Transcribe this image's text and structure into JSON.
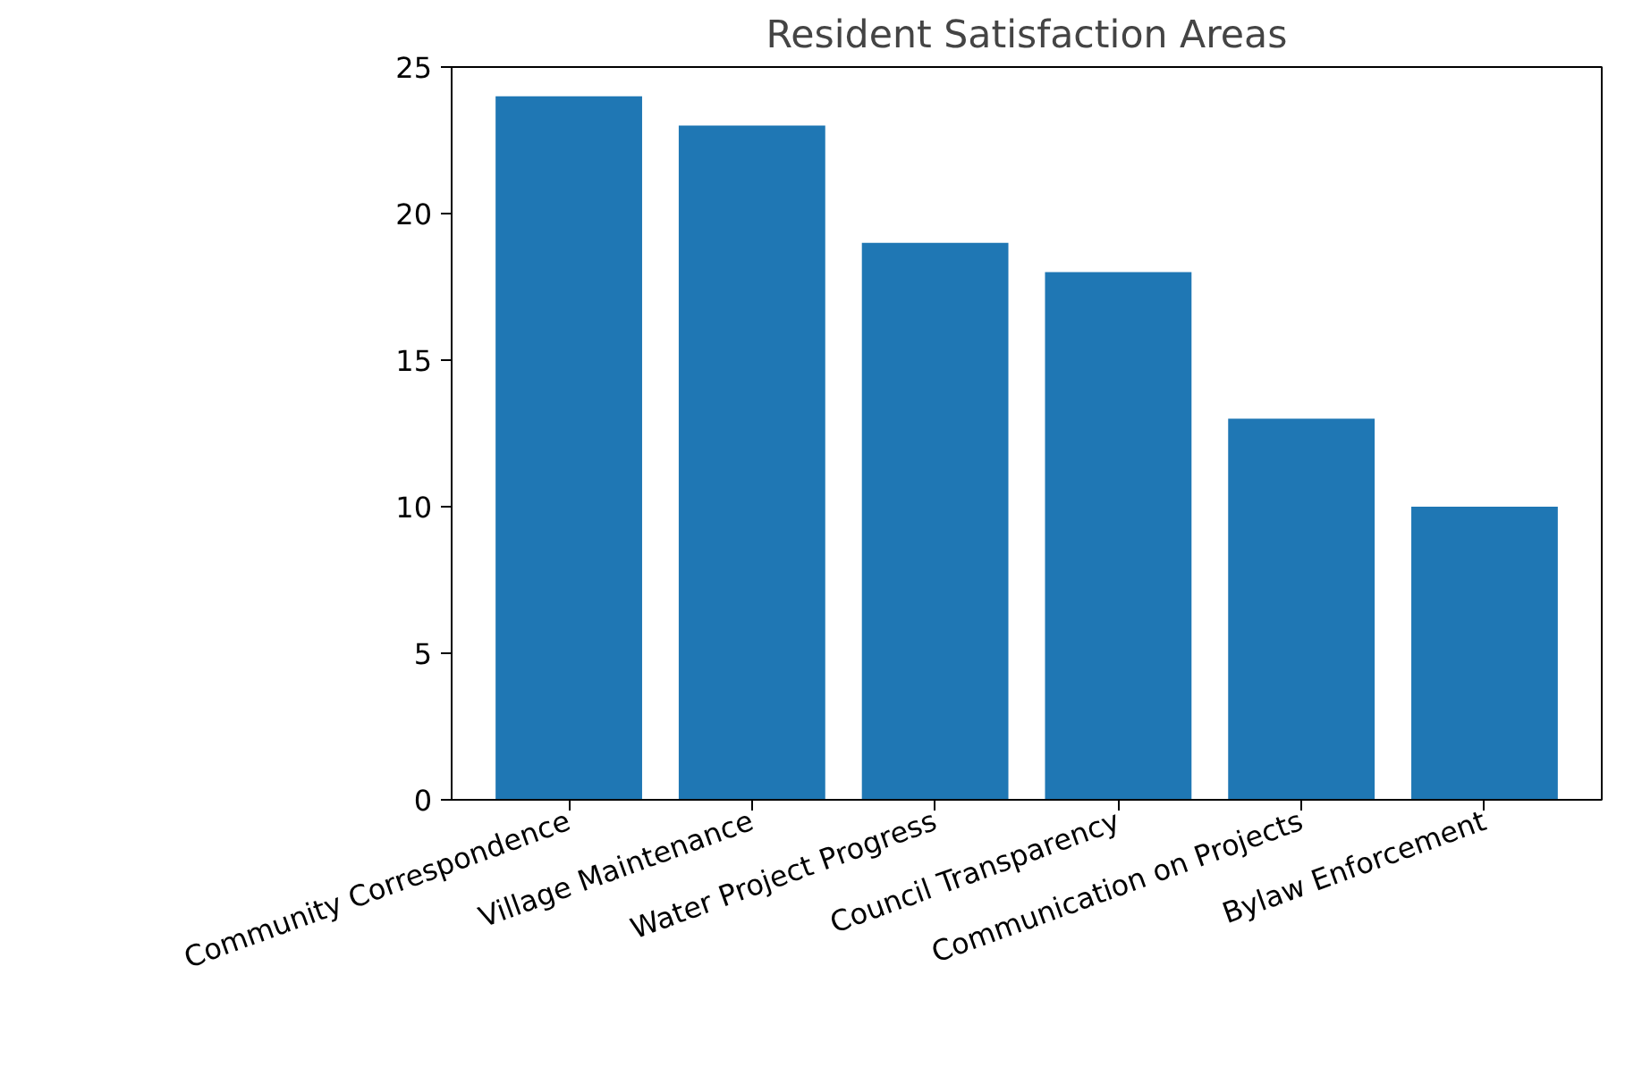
{
  "chart_data": {
    "type": "bar",
    "title": "Resident Satisfaction Areas",
    "categories": [
      "Community Correspondence",
      "Village Maintenance",
      "Water Project Progress",
      "Council Transparency",
      "Communication on Projects",
      "Bylaw Enforcement"
    ],
    "values": [
      24,
      23,
      19,
      18,
      13,
      10
    ],
    "color": "#1f77b4",
    "ylim": [
      0,
      25
    ],
    "yticks": [
      0,
      5,
      10,
      15,
      20,
      25
    ],
    "grid": false
  }
}
